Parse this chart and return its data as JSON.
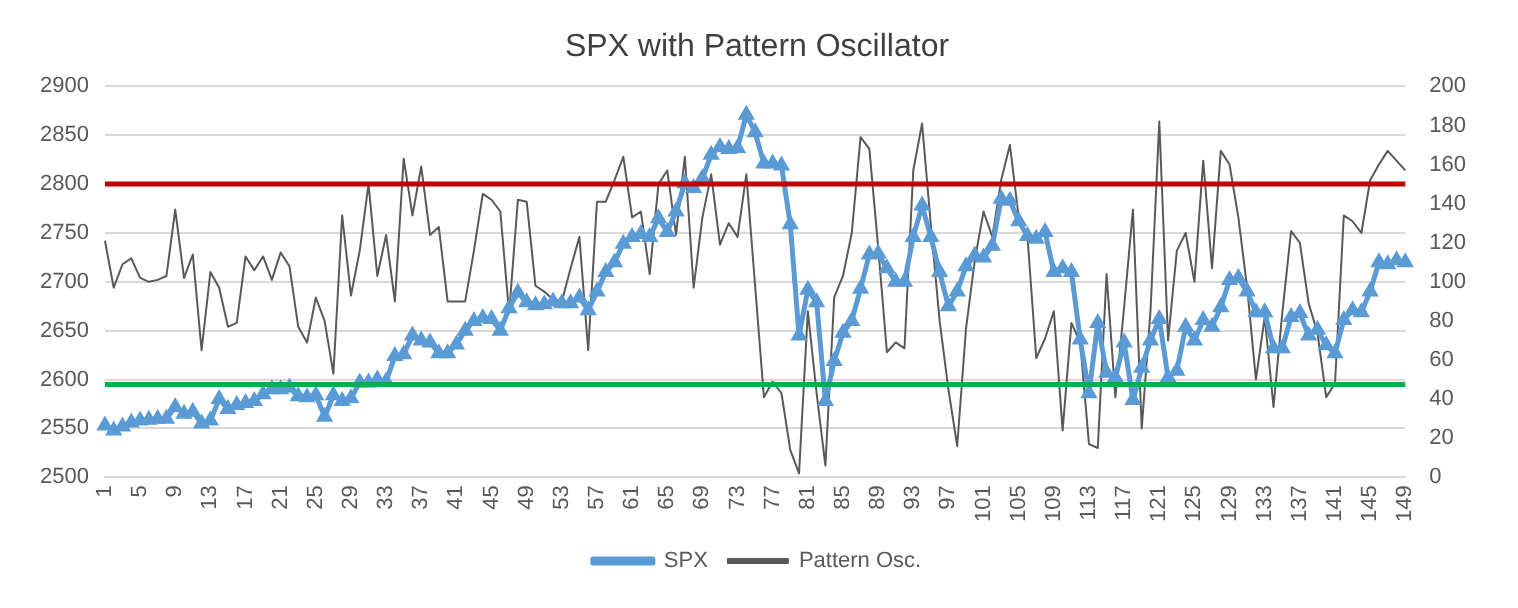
{
  "chart_data": {
    "type": "line",
    "title": "SPX with Pattern Oscillator",
    "categories": [
      "1",
      null,
      null,
      null,
      "5",
      null,
      null,
      null,
      "9",
      null,
      null,
      null,
      "13",
      null,
      null,
      null,
      "17",
      null,
      null,
      null,
      "21",
      null,
      null,
      null,
      "25",
      null,
      null,
      null,
      "29",
      null,
      null,
      null,
      "33",
      null,
      null,
      null,
      "37",
      null,
      null,
      null,
      "41",
      null,
      null,
      null,
      "45",
      null,
      null,
      null,
      "49",
      null,
      null,
      null,
      "53",
      null,
      null,
      null,
      "57",
      null,
      null,
      null,
      "61",
      null,
      null,
      null,
      "65",
      null,
      null,
      null,
      "69",
      null,
      null,
      null,
      "73",
      null,
      null,
      null,
      "77",
      null,
      null,
      null,
      "81",
      null,
      null,
      null,
      "85",
      null,
      null,
      null,
      "89",
      null,
      null,
      null,
      "93",
      null,
      null,
      null,
      "97",
      null,
      null,
      null,
      "101",
      null,
      null,
      null,
      "105",
      null,
      null,
      null,
      "109",
      null,
      null,
      null,
      "113",
      null,
      null,
      null,
      "117",
      null,
      null,
      null,
      "121",
      null,
      null,
      null,
      "125",
      null,
      null,
      null,
      "129",
      null,
      null,
      null,
      "133",
      null,
      null,
      null,
      "137",
      null,
      null,
      null,
      "141",
      null,
      null,
      null,
      "145",
      null,
      null,
      null,
      "149"
    ],
    "series": [
      {
        "name": "SPX",
        "color": "#5b9bd5",
        "marker": "triangle",
        "values": [
          2553,
          2548,
          2552,
          2556,
          2558,
          2559,
          2560,
          2560,
          2572,
          2565,
          2567,
          2555,
          2558,
          2580,
          2570,
          2574,
          2576,
          2578,
          2585,
          2590,
          2590,
          2592,
          2583,
          2582,
          2584,
          2562,
          2584,
          2578,
          2581,
          2597,
          2597,
          2600,
          2598,
          2624,
          2626,
          2645,
          2640,
          2638,
          2627,
          2627,
          2636,
          2650,
          2660,
          2663,
          2662,
          2650,
          2673,
          2689,
          2679,
          2676,
          2677,
          2680,
          2678,
          2678,
          2684,
          2671,
          2690,
          2710,
          2720,
          2739,
          2746,
          2749,
          2746,
          2765,
          2751,
          2772,
          2801,
          2796,
          2806,
          2830,
          2838,
          2836,
          2837,
          2871,
          2853,
          2821,
          2821,
          2819,
          2759,
          2645,
          2692,
          2679,
          2578,
          2619,
          2648,
          2660,
          2693,
          2728,
          2729,
          2714,
          2700,
          2700,
          2746,
          2778,
          2746,
          2710,
          2675,
          2690,
          2716,
          2727,
          2725,
          2737,
          2785,
          2783,
          2762,
          2747,
          2744,
          2751,
          2710,
          2714,
          2710,
          2641,
          2586,
          2658,
          2607,
          2602,
          2638,
          2579,
          2612,
          2640,
          2662,
          2602,
          2609,
          2654,
          2640,
          2661,
          2654,
          2674,
          2702,
          2704,
          2690,
          2669,
          2669,
          2632,
          2632,
          2664,
          2668,
          2645,
          2651,
          2635,
          2627,
          2661,
          2671,
          2669,
          2690,
          2720,
          2718,
          2722,
          2720
        ]
      },
      {
        "name": "Pattern Osc.",
        "color": "#595959",
        "marker": "none",
        "axis": "y2",
        "values": [
          121,
          97,
          109,
          112,
          102,
          100,
          101,
          103,
          137,
          102,
          114,
          65,
          105,
          97,
          77,
          79,
          113,
          106,
          113,
          101,
          115,
          108,
          77,
          69,
          92,
          80,
          53,
          134,
          93,
          116,
          150,
          103,
          124,
          90,
          163,
          134,
          159,
          124,
          128,
          90,
          90,
          90,
          116,
          145,
          142,
          136,
          84,
          142,
          141,
          98,
          95,
          91,
          90,
          107,
          123,
          65,
          141,
          141,
          152,
          164,
          133,
          136,
          104,
          150,
          157,
          124,
          164,
          97,
          133,
          155,
          119,
          130,
          123,
          155,
          98,
          41,
          49,
          43,
          14,
          2,
          85,
          43,
          6,
          92,
          103,
          125,
          174,
          168,
          118,
          64,
          69,
          66,
          157,
          181,
          129,
          80,
          45,
          16,
          76,
          111,
          136,
          123,
          152,
          170,
          133,
          123,
          61,
          71,
          85,
          24,
          79,
          69,
          17,
          15,
          104,
          41,
          87,
          137,
          25,
          85,
          182,
          70,
          116,
          125,
          100,
          162,
          107,
          167,
          160,
          133,
          97,
          50,
          82,
          36,
          84,
          126,
          120,
          89,
          74,
          41,
          48,
          134,
          131,
          125,
          152,
          160,
          167,
          162,
          157
        ]
      }
    ],
    "ylim": [
      2500,
      2900
    ],
    "yticks": [
      2500,
      2550,
      2600,
      2650,
      2700,
      2750,
      2800,
      2850,
      2900
    ],
    "y2lim": [
      0,
      200
    ],
    "y2ticks": [
      0,
      20,
      40,
      60,
      80,
      100,
      120,
      140,
      160,
      180,
      200
    ],
    "ref_lines": [
      {
        "axis": "y",
        "value": 2800,
        "color": "#c00000"
      },
      {
        "axis": "y",
        "value": 2595,
        "color": "#00b050"
      }
    ],
    "grid": "y",
    "legend": "bottom"
  }
}
